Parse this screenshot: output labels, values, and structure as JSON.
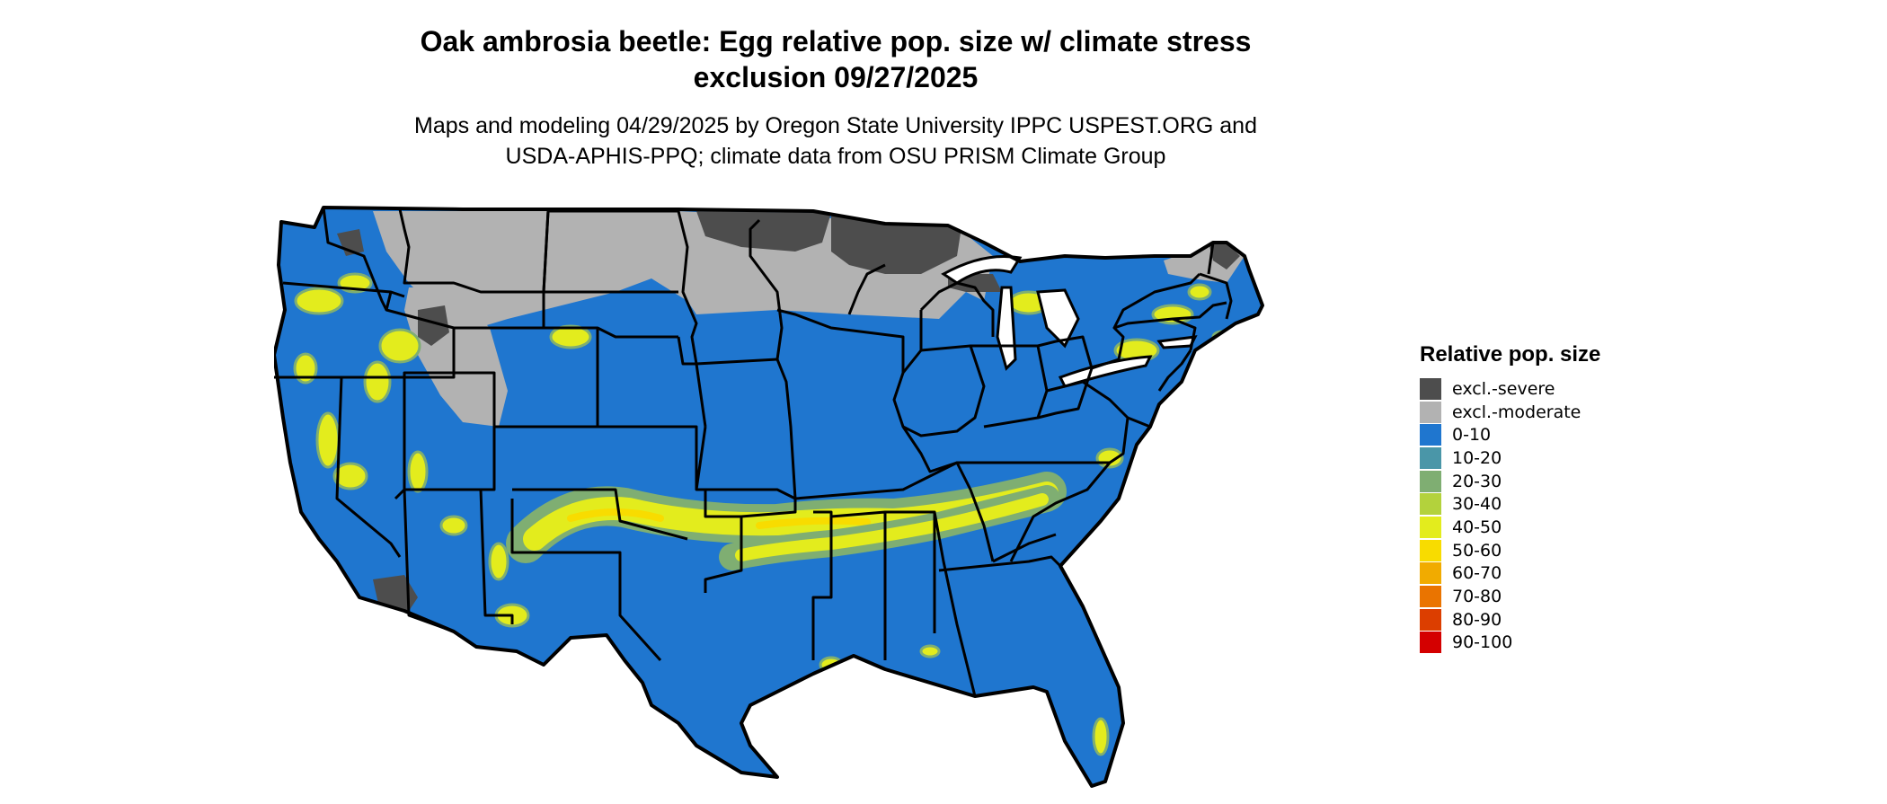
{
  "title": {
    "line1": "Oak ambrosia beetle: Egg relative pop. size w/ climate stress",
    "line2": "exclusion 09/27/2025"
  },
  "subtitle": {
    "line1": "Maps and modeling 04/29/2025 by Oregon State University IPPC USPEST.ORG and",
    "line2": "USDA-APHIS-PPQ; climate data from OSU PRISM Climate Group"
  },
  "legend": {
    "title": "Relative pop. size",
    "items": [
      {
        "label": "excl.-severe",
        "color": "#4d4d4d"
      },
      {
        "label": "excl.-moderate",
        "color": "#b2b2b2"
      },
      {
        "label": "0-10",
        "color": "#1f76cf"
      },
      {
        "label": "10-20",
        "color": "#4a96a8"
      },
      {
        "label": "20-30",
        "color": "#7fae72"
      },
      {
        "label": "30-40",
        "color": "#b3d23c"
      },
      {
        "label": "40-50",
        "color": "#e3ec1d"
      },
      {
        "label": "50-60",
        "color": "#f8dc00"
      },
      {
        "label": "60-70",
        "color": "#f1ab00"
      },
      {
        "label": "70-80",
        "color": "#ea7400"
      },
      {
        "label": "80-90",
        "color": "#dc3e00"
      },
      {
        "label": "90-100",
        "color": "#d40000"
      }
    ]
  }
}
